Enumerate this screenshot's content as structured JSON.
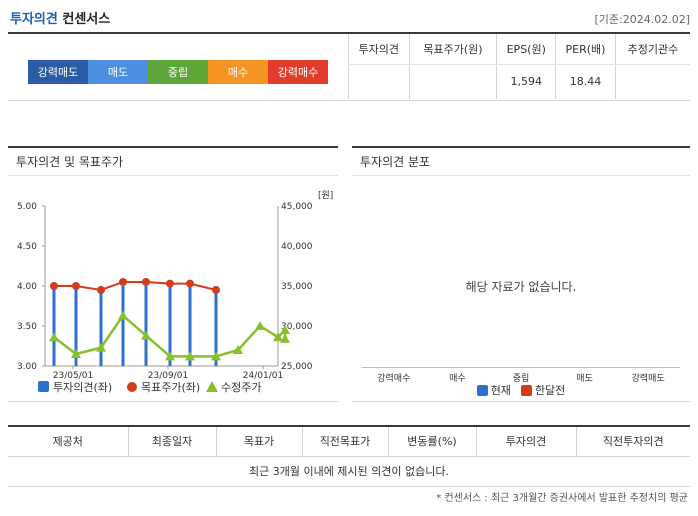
{
  "header": {
    "title_main": "투자의견",
    "title_sub": "컨센서스",
    "basis_date": "[기준:2024.02.02]"
  },
  "opinion_scale": [
    {
      "label": "강력매도",
      "color": "#2b5aa6"
    },
    {
      "label": "매도",
      "color": "#4c8fe0"
    },
    {
      "label": "중립",
      "color": "#5fa63a"
    },
    {
      "label": "매수",
      "color": "#f59323"
    },
    {
      "label": "강력매수",
      "color": "#e23c2c"
    }
  ],
  "summary": {
    "headers": [
      "투자의견",
      "목표주가(원)",
      "EPS(원)",
      "PER(배)",
      "추정기관수"
    ],
    "values": [
      "",
      "",
      "1,594",
      "18.44",
      ""
    ]
  },
  "left_panel": {
    "title": "투자의견 및 목표주가",
    "unit": "[원]",
    "legend": [
      {
        "label": "투자의견(좌)",
        "color": "#2f6fd0",
        "shape": "square"
      },
      {
        "label": "목표주가(좌)",
        "color": "#d43d1c",
        "shape": "circle"
      },
      {
        "label": "수정주가",
        "color": "#86c02a",
        "shape": "triangle"
      }
    ]
  },
  "right_panel": {
    "title": "투자의견 분포",
    "empty_message": "해당 자료가 없습니다.",
    "categories": [
      "강력매수",
      "매수",
      "중립",
      "매도",
      "강력매도"
    ],
    "legend": [
      {
        "label": "현재",
        "color": "#2f6fd0"
      },
      {
        "label": "한달전",
        "color": "#d43d1c"
      }
    ]
  },
  "bottom": {
    "headers": [
      "제공처",
      "최종일자",
      "목표가",
      "직전목표가",
      "변동률(%)",
      "투자의견",
      "직전투자의견"
    ],
    "empty_message": "최근 3개월 이내에 제시된 의견이 없습니다.",
    "footnote": "* 컨센서스 : 최근 3개월간 증권사에서 발표한 추정치의 평균"
  },
  "chart_data": [
    {
      "type": "line",
      "x_ticks": [
        "23/05/01",
        "23/09/01",
        "24/01/01"
      ],
      "left_axis": {
        "ticks": [
          "5.00",
          "4.50",
          "4.00",
          "3.50",
          "3.00"
        ],
        "ylim": [
          3.0,
          5.0
        ]
      },
      "right_axis": {
        "ticks": [
          "45,000",
          "40,000",
          "35,000",
          "30,000",
          "25,000"
        ],
        "ylim": [
          25000,
          45000
        ]
      },
      "series": [
        {
          "name": "투자의견(좌)",
          "type": "bar",
          "axis": "left",
          "values": [
            4.0,
            4.0,
            4.0,
            4.0,
            4.0,
            4.0,
            4.0,
            4.0
          ],
          "color": "#2f6fd0"
        },
        {
          "name": "목표주가(좌)",
          "type": "line",
          "axis": "right",
          "values": [
            35000,
            35000,
            34500,
            35500,
            35500,
            35300,
            35300,
            34500
          ],
          "color": "#d43d1c"
        },
        {
          "name": "수정주가",
          "type": "line",
          "axis": "right",
          "values": [
            28600,
            26500,
            27300,
            31300,
            28800,
            26200,
            26200,
            26200,
            27000,
            30000,
            28600,
            29500,
            28400
          ],
          "color": "#86c02a"
        }
      ]
    }
  ]
}
